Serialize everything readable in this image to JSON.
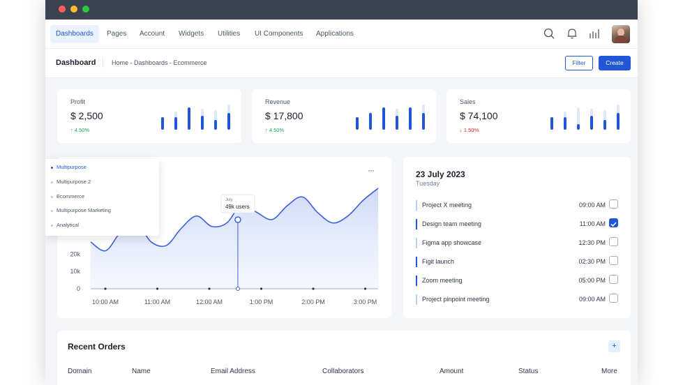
{
  "nav": {
    "items": [
      "Dashboards",
      "Pages",
      "Account",
      "Widgets",
      "Utilities",
      "UI Components",
      "Applications"
    ],
    "active": "Dashboards"
  },
  "subbar": {
    "title": "Dashboard",
    "breadcrumb": "Home - Dashboards - Ecommerce",
    "filter_label": "Filter",
    "create_label": "Create"
  },
  "stats": [
    {
      "label": "Profit",
      "value": "$ 2,500",
      "change": "4.50%",
      "direction": "up",
      "bars": [
        0.45,
        0.65,
        0.8,
        0.75,
        0.7,
        0.9
      ],
      "fills": [
        0.45,
        0.45,
        0.8,
        0.5,
        0.35,
        0.6
      ]
    },
    {
      "label": "Revenue",
      "value": "$ 17,800",
      "change": "4.50%",
      "direction": "up",
      "bars": [
        0.45,
        0.65,
        0.8,
        0.75,
        0.7,
        0.9
      ],
      "fills": [
        0.45,
        0.6,
        0.8,
        0.5,
        0.8,
        0.6
      ]
    },
    {
      "label": "Sales",
      "value": "$ 74,100",
      "change": "1.50%",
      "direction": "down",
      "bars": [
        0.45,
        0.65,
        0.8,
        0.75,
        0.7,
        0.9
      ],
      "fills": [
        0.45,
        0.45,
        0.2,
        0.5,
        0.35,
        0.6
      ]
    }
  ],
  "dropdown": [
    "Multipurpose",
    "Multipurpose 2",
    "Ecommerce",
    "Multipurpose Marketing",
    "Analytical"
  ],
  "more_glyph": "···",
  "chart_data": {
    "type": "area",
    "x_ticks": [
      "10:00 AM",
      "11:00 AM",
      "12:00 AM",
      "1:00 PM",
      "2:00 PM",
      "3:00 PM"
    ],
    "y_ticks": [
      "0",
      "10k",
      "20k"
    ],
    "ylim": [
      0,
      60
    ],
    "series": [
      {
        "values": [
          27,
          22,
          33,
          38,
          27,
          25,
          35,
          42,
          36,
          38,
          49,
          44,
          40,
          48,
          53,
          44,
          38,
          42,
          51,
          58
        ]
      }
    ],
    "tooltip": {
      "label": "July",
      "value": "49k users"
    },
    "color": "#3b62d6"
  },
  "calendar": {
    "date": "23 July 2023",
    "day": "Tuesday",
    "events": [
      {
        "name": "Project X meeting",
        "time": "09:00 AM",
        "checked": false
      },
      {
        "name": "Design team meeting",
        "time": "11:00 AM",
        "checked": true
      },
      {
        "name": "Figma app showcase",
        "time": "12:30 PM",
        "checked": false
      },
      {
        "name": "Figit launch",
        "time": "02:30 PM",
        "checked": false
      },
      {
        "name": "Zoom meeting",
        "time": "05:00 PM",
        "checked": false
      },
      {
        "name": "Project pinpoint meeting",
        "time": "09:00 AM",
        "checked": false
      }
    ]
  },
  "orders": {
    "title": "Recent Orders",
    "add_glyph": "+",
    "columns": [
      "Domain",
      "Name",
      "Email Address",
      "Collaborators",
      "Amount",
      "Status",
      "More"
    ]
  },
  "colors": {
    "accent": "#2256d8",
    "up": "#16a34a",
    "down": "#dc2626",
    "bar_bg": "#dde8fb"
  }
}
